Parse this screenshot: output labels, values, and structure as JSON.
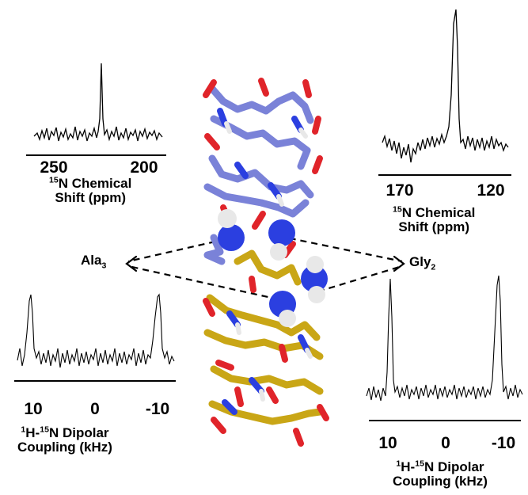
{
  "panels": {
    "top_left": {
      "axis_ticks": [
        "250",
        "200"
      ],
      "axis_title_line1": "Chemical",
      "axis_title_line2": "Shift (ppm)",
      "isotope_sup": "15",
      "isotope_el": "N"
    },
    "top_right": {
      "axis_ticks": [
        "170",
        "120"
      ],
      "axis_title_line1": "Chemical",
      "axis_title_line2": "Shift (ppm)",
      "isotope_sup": "15",
      "isotope_el": "N"
    },
    "bottom_left": {
      "axis_ticks": [
        "10",
        "0",
        "-10"
      ],
      "h_sup": "1",
      "h_el": "H-",
      "n_sup": "15",
      "n_el": "N",
      "axis_title_word": "Dipolar",
      "axis_title_line2": "Coupling (kHz)"
    },
    "bottom_right": {
      "axis_ticks": [
        "10",
        "0",
        "-10"
      ],
      "h_sup": "1",
      "h_el": "H-",
      "n_sup": "15",
      "n_el": "N",
      "axis_title_word": "Dipolar",
      "axis_title_line2": "Coupling (kHz)"
    }
  },
  "labels": {
    "ala_base": "Ala",
    "ala_sub": "3",
    "gly_base": "Gly",
    "gly_sub": "2"
  },
  "colors": {
    "upper_helix": "#7a82d8",
    "lower_helix": "#c9a616",
    "nitrogen_atom": "#2b3fe0",
    "oxygen_atom": "#e0242a",
    "hydrogen_atom": "#e8e8e8",
    "spectrum_line": "#000000"
  }
}
